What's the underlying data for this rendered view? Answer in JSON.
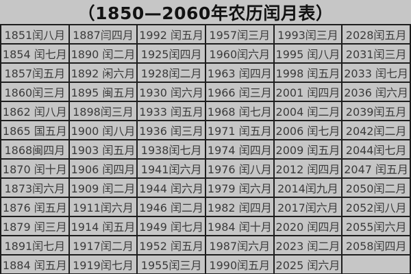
{
  "title": "（1850—2060年农历闰月表）",
  "colors": {
    "background": "#c6c6c6",
    "border": "#1d1d1d",
    "title_text": "#121212",
    "cell_text": "#3a3a3a"
  },
  "table": {
    "columns": 6,
    "rows": [
      [
        "1851闰八月",
        "1887闫四月",
        "1992 闰五月",
        "1957闰三月",
        "1993闰三月",
        "2028闰五月"
      ],
      [
        "1854 闰七月",
        "1890 闰二月",
        "1925闰四月",
        "1960闰六月",
        "1995 闰八月",
        "2031闰三月"
      ],
      [
        "1857闰五月",
        "1892 闲六月",
        "1928闰二月",
        "1963 闰四月",
        "1998 闰五月",
        "2033 闰七月"
      ],
      [
        "1860闰三月",
        "1895 闽五月",
        "1930 闰六月",
        "1966 闰三月",
        "2001 闰四月",
        "2036 闰六月"
      ],
      [
        "1862 闰八月",
        "1898闰三月",
        "1933 闰五月",
        "1968 闰七月",
        "2004 闰二月",
        "2039闰五月"
      ],
      [
        "1865 国五月",
        "1900 闰八月",
        "1936 闰三月",
        "1971 闰五月",
        "2006 闰七月",
        "2042闰二月"
      ],
      [
        "1868闽四月",
        "1903 闰五月",
        "1938闰七月",
        "1974 闰四月",
        "2009 闰五月",
        "2044闰七月"
      ],
      [
        "1870 闰十月",
        "1906 闰四月",
        "1941闰六月",
        "1976 闰八月",
        "2012 闰四月",
        "2047 闰五月"
      ],
      [
        "1873闰六月",
        "1909 闰二月",
        "1944 闰六月",
        "1979 闰六月",
        "2014闰九月",
        "2050闰二月"
      ],
      [
        "1876 闰五月",
        "1911闰六月",
        "1946 闰二月",
        "1982 闰四月",
        "2017闰六月",
        "2052闰八月"
      ],
      [
        "1879 闰三月",
        "1914 闰五月",
        "1949 闰七月",
        "1984 闰十月",
        "2020 闰四月",
        "2055闰六月"
      ],
      [
        "1891闰七月",
        "1917闰二月",
        "1952 闰五月",
        "1987闰六月",
        "2023 闰二月",
        "2058闰四月"
      ],
      [
        "1884 闰五月",
        "1919闰七月",
        "1955闰三月",
        "1990闰五月",
        "2025 闰六月",
        ""
      ]
    ]
  }
}
